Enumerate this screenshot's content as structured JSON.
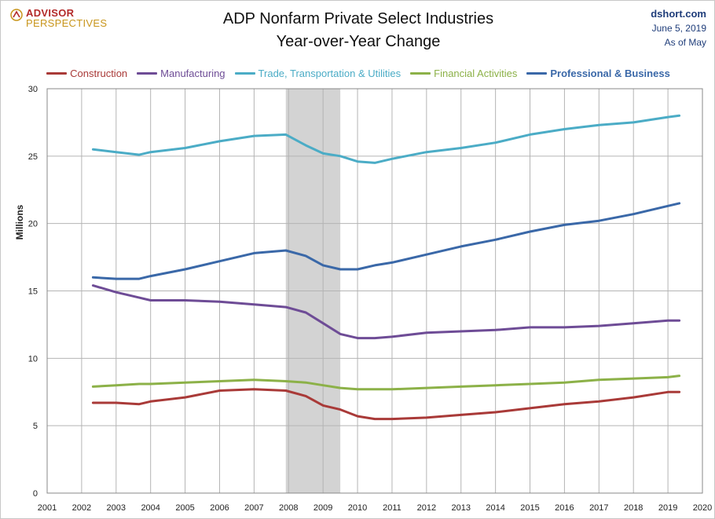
{
  "header": {
    "logo_line1": "ADVISOR",
    "logo_line2": "PERSPECTIVES",
    "title_line1": "ADP Nonfarm Private Select Industries",
    "title_line2": "Year-over-Year Change",
    "source_site": "dshort.com",
    "source_date": "June 5, 2019",
    "source_asof": "As of May"
  },
  "colors": {
    "construction": "#a93a38",
    "manufacturing": "#6e4c96",
    "trade": "#4bacc6",
    "financial": "#8cb148",
    "professional": "#3a68a8",
    "recession": "#d3d3d3",
    "grid": "#b4b4b4"
  },
  "chart_data": {
    "type": "line",
    "title": "ADP Nonfarm Private Select Industries Year-over-Year Change",
    "ylabel": "Millions",
    "xlabel": "",
    "xlim": [
      2001,
      2020
    ],
    "ylim": [
      0,
      30
    ],
    "yticks": [
      0,
      5,
      10,
      15,
      20,
      25,
      30
    ],
    "xticks": [
      2001,
      2002,
      2003,
      2004,
      2005,
      2006,
      2007,
      2008,
      2009,
      2010,
      2011,
      2012,
      2013,
      2014,
      2015,
      2016,
      2017,
      2018,
      2019,
      2020
    ],
    "grid": true,
    "legend_position": "top",
    "recession_band": [
      2007.92,
      2009.5
    ],
    "x": [
      2002.33,
      2003.0,
      2003.67,
      2004.0,
      2005.0,
      2006.0,
      2007.0,
      2007.92,
      2008.5,
      2009.0,
      2009.5,
      2010.0,
      2010.5,
      2011.0,
      2012.0,
      2013.0,
      2014.0,
      2015.0,
      2016.0,
      2017.0,
      2018.0,
      2019.0,
      2019.33
    ],
    "series": [
      {
        "name": "Construction",
        "values": [
          6.7,
          6.7,
          6.6,
          6.8,
          7.1,
          7.6,
          7.7,
          7.6,
          7.2,
          6.5,
          6.2,
          5.7,
          5.5,
          5.5,
          5.6,
          5.8,
          6.0,
          6.3,
          6.6,
          6.8,
          7.1,
          7.5,
          7.5
        ]
      },
      {
        "name": "Manufacturing",
        "values": [
          15.4,
          14.9,
          14.5,
          14.3,
          14.3,
          14.2,
          14.0,
          13.8,
          13.4,
          12.6,
          11.8,
          11.5,
          11.5,
          11.6,
          11.9,
          12.0,
          12.1,
          12.3,
          12.3,
          12.4,
          12.6,
          12.8,
          12.8
        ]
      },
      {
        "name": "Trade, Transportation & Utilities",
        "values": [
          25.5,
          25.3,
          25.1,
          25.3,
          25.6,
          26.1,
          26.5,
          26.6,
          25.8,
          25.2,
          25.0,
          24.6,
          24.5,
          24.8,
          25.3,
          25.6,
          26.0,
          26.6,
          27.0,
          27.3,
          27.5,
          27.9,
          28.0
        ]
      },
      {
        "name": "Financial Activities",
        "values": [
          7.9,
          8.0,
          8.1,
          8.1,
          8.2,
          8.3,
          8.4,
          8.3,
          8.2,
          8.0,
          7.8,
          7.7,
          7.7,
          7.7,
          7.8,
          7.9,
          8.0,
          8.1,
          8.2,
          8.4,
          8.5,
          8.6,
          8.7
        ]
      },
      {
        "name": "Professional & Business",
        "values": [
          16.0,
          15.9,
          15.9,
          16.1,
          16.6,
          17.2,
          17.8,
          18.0,
          17.6,
          16.9,
          16.6,
          16.6,
          16.9,
          17.1,
          17.7,
          18.3,
          18.8,
          19.4,
          19.9,
          20.2,
          20.7,
          21.3,
          21.5
        ]
      }
    ]
  }
}
